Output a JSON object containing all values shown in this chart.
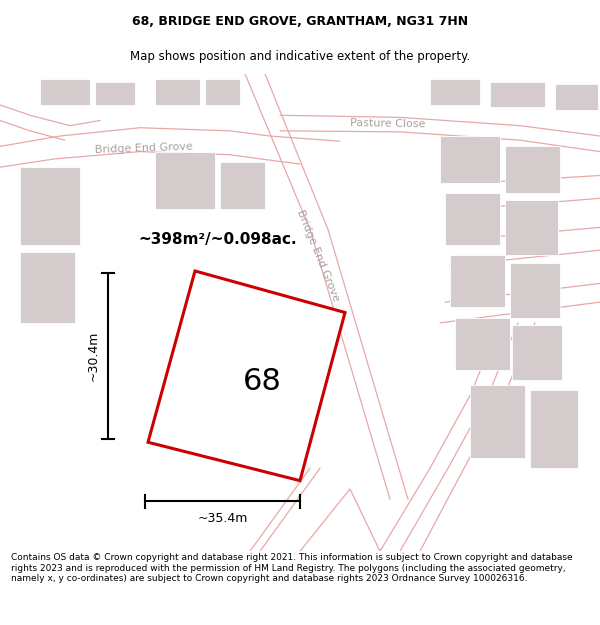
{
  "title": "68, BRIDGE END GROVE, GRANTHAM, NG31 7HN",
  "subtitle": "Map shows position and indicative extent of the property.",
  "footer": "Contains OS data © Crown copyright and database right 2021. This information is subject to Crown copyright and database rights 2023 and is reproduced with the permission of HM Land Registry. The polygons (including the associated geometry, namely x, y co-ordinates) are subject to Crown copyright and database rights 2023 Ordnance Survey 100026316.",
  "bg_color": "#ffffff",
  "map_bg": "#f9f6f6",
  "building_color": "#d4cccc",
  "road_line_color": "#e8a8a8",
  "road_label_color": "#a8a0a0",
  "plot_outline_color": "#cc0000",
  "plot_fill_color": "#ffffff",
  "plot_label": "68",
  "area_label": "~398m²/~0.098ac.",
  "width_label": "~35.4m",
  "height_label": "~30.4m",
  "title_fontsize": 9,
  "subtitle_fontsize": 8.5,
  "footer_fontsize": 6.5
}
